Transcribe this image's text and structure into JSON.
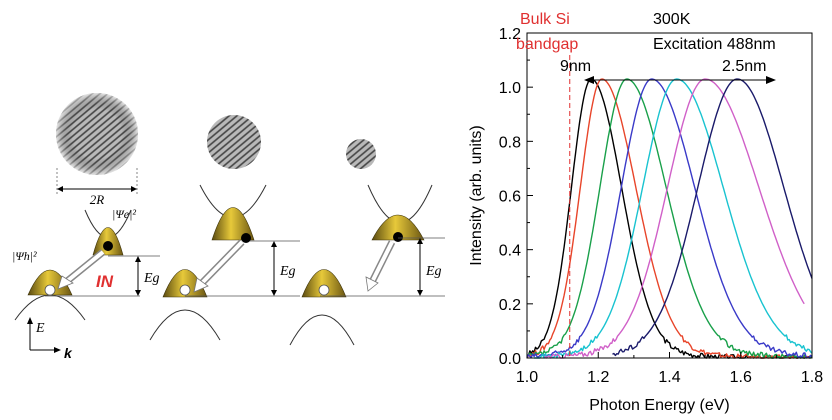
{
  "left_panel": {
    "label_2R": "2R",
    "label_psi_e": "|Ψe|²",
    "label_psi_h": "|Ψh|²",
    "label_Eg": "Eg",
    "label_IN": "IN",
    "label_E_axis": "E",
    "label_k_axis": "k"
  },
  "chart_data": {
    "type": "line",
    "xlabel": "Photon Energy (eV)",
    "ylabel": "Intensity (arb. units)",
    "xlim": [
      1.0,
      1.8
    ],
    "ylim": [
      0.0,
      1.2
    ],
    "xticks": [
      "1.0",
      "1.2",
      "1.4",
      "1.6",
      "1.8"
    ],
    "yticks": [
      "0.0",
      "0.2",
      "0.4",
      "0.6",
      "0.8",
      "1.0",
      "1.2"
    ],
    "grid": false,
    "annotations": {
      "bulk_si_line1": "Bulk Si",
      "bulk_si_line2": "bandgap",
      "bulk_si_energy": 1.12,
      "temperature": "300K",
      "excitation": "Excitation 488nm",
      "size_large": "9nm",
      "size_small": "2.5nm"
    },
    "colors": {
      "bulk_line": "#e03030",
      "annotation_red": "#e03030",
      "axis": "#000000"
    },
    "series": [
      {
        "color": "#000000",
        "peak": 1.18,
        "left_width": 0.055,
        "right_width": 0.085,
        "x_start": 1.0,
        "x_end": 1.8
      },
      {
        "color": "#e8452a",
        "peak": 1.21,
        "left_width": 0.06,
        "right_width": 0.095,
        "x_start": 1.0,
        "x_end": 1.8
      },
      {
        "color": "#19a04a",
        "peak": 1.28,
        "left_width": 0.075,
        "right_width": 0.11,
        "x_start": 1.0,
        "x_end": 1.8
      },
      {
        "color": "#3a3ac8",
        "peak": 1.35,
        "left_width": 0.085,
        "right_width": 0.12,
        "x_start": 1.0,
        "x_end": 1.8
      },
      {
        "color": "#19c3d0",
        "peak": 1.42,
        "left_width": 0.095,
        "right_width": 0.13,
        "x_start": 1.02,
        "x_end": 1.8
      },
      {
        "color": "#d060c8",
        "peak": 1.5,
        "left_width": 0.105,
        "right_width": 0.15,
        "x_start": 1.05,
        "x_end": 1.78
      },
      {
        "color": "#1a1a6a",
        "peak": 1.59,
        "left_width": 0.11,
        "right_width": 0.13,
        "x_start": 1.24,
        "x_end": 1.8
      }
    ]
  }
}
